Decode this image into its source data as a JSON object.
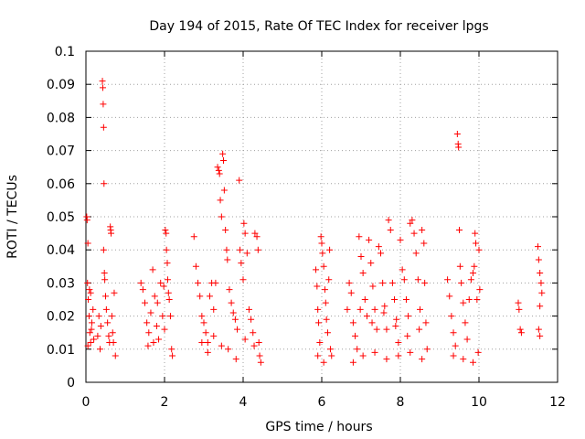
{
  "chart_data": {
    "type": "scatter",
    "title": "Day 194 of 2015, Rate Of TEC Index for receiver lpgs",
    "xlabel": "GPS time / hours",
    "ylabel": "ROTI / TECUs",
    "xlim": [
      0,
      12
    ],
    "ylim": [
      0,
      0.1
    ],
    "x_ticks": [
      0,
      2,
      4,
      6,
      8,
      10,
      12
    ],
    "x_tick_labels": [
      "0",
      "2",
      "4",
      "6",
      "8",
      "10",
      "12"
    ],
    "y_ticks": [
      0,
      0.01,
      0.02,
      0.03,
      0.04,
      0.05,
      0.06,
      0.07,
      0.08,
      0.09,
      0.1
    ],
    "y_tick_labels": [
      "0",
      "0.01",
      "0.02",
      "0.03",
      "0.04",
      "0.05",
      "0.06",
      "0.07",
      "0.08",
      "0.09",
      "0.1"
    ],
    "grid": true,
    "marker": "+",
    "marker_color": "#ff0000",
    "series": [
      {
        "name": "ROTI",
        "points": [
          [
            0.02,
            0.05
          ],
          [
            0.03,
            0.049
          ],
          [
            0.05,
            0.042
          ],
          [
            0.04,
            0.03
          ],
          [
            0.06,
            0.025
          ],
          [
            0.08,
            0.02
          ],
          [
            0.1,
            0.015
          ],
          [
            0.12,
            0.012
          ],
          [
            0.15,
            0.018
          ],
          [
            0.18,
            0.022
          ],
          [
            0.2,
            0.013
          ],
          [
            0.05,
            0.011
          ],
          [
            0.09,
            0.028
          ],
          [
            0.12,
            0.027
          ],
          [
            0.14,
            0.016
          ],
          [
            0.3,
            0.014
          ],
          [
            0.33,
            0.02
          ],
          [
            0.36,
            0.01
          ],
          [
            0.38,
            0.017
          ],
          [
            0.42,
            0.091
          ],
          [
            0.43,
            0.089
          ],
          [
            0.44,
            0.084
          ],
          [
            0.45,
            0.077
          ],
          [
            0.46,
            0.06
          ],
          [
            0.45,
            0.04
          ],
          [
            0.47,
            0.033
          ],
          [
            0.48,
            0.031
          ],
          [
            0.5,
            0.026
          ],
          [
            0.52,
            0.022
          ],
          [
            0.55,
            0.018
          ],
          [
            0.58,
            0.014
          ],
          [
            0.6,
            0.012
          ],
          [
            0.62,
            0.047
          ],
          [
            0.63,
            0.046
          ],
          [
            0.64,
            0.045
          ],
          [
            0.66,
            0.02
          ],
          [
            0.68,
            0.015
          ],
          [
            0.7,
            0.012
          ],
          [
            0.72,
            0.027
          ],
          [
            0.75,
            0.008
          ],
          [
            1.4,
            0.03
          ],
          [
            1.45,
            0.028
          ],
          [
            1.5,
            0.024
          ],
          [
            1.55,
            0.018
          ],
          [
            1.6,
            0.015
          ],
          [
            1.65,
            0.021
          ],
          [
            1.7,
            0.034
          ],
          [
            1.75,
            0.026
          ],
          [
            1.8,
            0.017
          ],
          [
            1.85,
            0.013
          ],
          [
            1.9,
            0.03
          ],
          [
            1.95,
            0.02
          ],
          [
            2.0,
            0.016
          ],
          [
            2.02,
            0.046
          ],
          [
            2.04,
            0.045
          ],
          [
            2.05,
            0.04
          ],
          [
            2.07,
            0.036
          ],
          [
            2.1,
            0.027
          ],
          [
            2.12,
            0.025
          ],
          [
            2.15,
            0.02
          ],
          [
            2.18,
            0.01
          ],
          [
            2.2,
            0.008
          ],
          [
            1.58,
            0.011
          ],
          [
            1.72,
            0.012
          ],
          [
            1.82,
            0.024
          ],
          [
            1.98,
            0.029
          ],
          [
            2.08,
            0.031
          ],
          [
            2.75,
            0.044
          ],
          [
            2.8,
            0.035
          ],
          [
            2.85,
            0.03
          ],
          [
            2.9,
            0.026
          ],
          [
            2.95,
            0.02
          ],
          [
            3.0,
            0.018
          ],
          [
            3.05,
            0.015
          ],
          [
            3.1,
            0.012
          ],
          [
            3.15,
            0.026
          ],
          [
            3.2,
            0.03
          ],
          [
            3.25,
            0.022
          ],
          [
            3.3,
            0.03
          ],
          [
            3.35,
            0.065
          ],
          [
            3.38,
            0.064
          ],
          [
            3.4,
            0.063
          ],
          [
            3.42,
            0.055
          ],
          [
            3.45,
            0.05
          ],
          [
            3.48,
            0.069
          ],
          [
            3.5,
            0.067
          ],
          [
            3.52,
            0.058
          ],
          [
            3.55,
            0.046
          ],
          [
            3.58,
            0.04
          ],
          [
            3.6,
            0.037
          ],
          [
            3.65,
            0.028
          ],
          [
            3.7,
            0.024
          ],
          [
            3.75,
            0.021
          ],
          [
            3.8,
            0.019
          ],
          [
            3.85,
            0.016
          ],
          [
            3.9,
            0.061
          ],
          [
            3.92,
            0.04
          ],
          [
            3.95,
            0.036
          ],
          [
            4.0,
            0.031
          ],
          [
            4.02,
            0.048
          ],
          [
            4.05,
            0.045
          ],
          [
            4.1,
            0.039
          ],
          [
            4.15,
            0.022
          ],
          [
            4.2,
            0.019
          ],
          [
            4.25,
            0.015
          ],
          [
            4.3,
            0.045
          ],
          [
            4.35,
            0.044
          ],
          [
            4.38,
            0.04
          ],
          [
            4.4,
            0.012
          ],
          [
            4.42,
            0.008
          ],
          [
            4.45,
            0.006
          ],
          [
            2.95,
            0.012
          ],
          [
            3.1,
            0.009
          ],
          [
            3.25,
            0.014
          ],
          [
            3.45,
            0.011
          ],
          [
            3.62,
            0.01
          ],
          [
            3.82,
            0.007
          ],
          [
            4.05,
            0.013
          ],
          [
            4.28,
            0.011
          ],
          [
            5.85,
            0.034
          ],
          [
            5.88,
            0.029
          ],
          [
            5.9,
            0.022
          ],
          [
            5.92,
            0.018
          ],
          [
            5.95,
            0.012
          ],
          [
            5.98,
            0.044
          ],
          [
            6.0,
            0.042
          ],
          [
            6.02,
            0.039
          ],
          [
            6.05,
            0.035
          ],
          [
            6.08,
            0.028
          ],
          [
            6.1,
            0.024
          ],
          [
            6.12,
            0.019
          ],
          [
            6.15,
            0.015
          ],
          [
            6.18,
            0.031
          ],
          [
            6.2,
            0.04
          ],
          [
            6.22,
            0.01
          ],
          [
            6.25,
            0.008
          ],
          [
            6.05,
            0.006
          ],
          [
            5.9,
            0.008
          ],
          [
            6.65,
            0.022
          ],
          [
            6.7,
            0.03
          ],
          [
            6.75,
            0.027
          ],
          [
            6.8,
            0.018
          ],
          [
            6.85,
            0.014
          ],
          [
            6.9,
            0.01
          ],
          [
            6.95,
            0.044
          ],
          [
            7.0,
            0.038
          ],
          [
            7.05,
            0.033
          ],
          [
            7.1,
            0.025
          ],
          [
            7.15,
            0.02
          ],
          [
            7.2,
            0.043
          ],
          [
            7.25,
            0.036
          ],
          [
            7.3,
            0.029
          ],
          [
            7.35,
            0.022
          ],
          [
            7.4,
            0.016
          ],
          [
            7.45,
            0.041
          ],
          [
            7.5,
            0.039
          ],
          [
            7.55,
            0.03
          ],
          [
            7.6,
            0.023
          ],
          [
            7.65,
            0.016
          ],
          [
            7.7,
            0.049
          ],
          [
            7.75,
            0.046
          ],
          [
            7.8,
            0.03
          ],
          [
            7.85,
            0.025
          ],
          [
            7.9,
            0.019
          ],
          [
            7.95,
            0.012
          ],
          [
            8.0,
            0.043
          ],
          [
            8.05,
            0.034
          ],
          [
            8.1,
            0.031
          ],
          [
            8.15,
            0.025
          ],
          [
            8.2,
            0.02
          ],
          [
            8.25,
            0.048
          ],
          [
            8.3,
            0.049
          ],
          [
            8.35,
            0.045
          ],
          [
            8.4,
            0.039
          ],
          [
            8.45,
            0.031
          ],
          [
            8.5,
            0.022
          ],
          [
            8.55,
            0.046
          ],
          [
            8.6,
            0.042
          ],
          [
            8.62,
            0.03
          ],
          [
            8.65,
            0.018
          ],
          [
            8.68,
            0.01
          ],
          [
            6.8,
            0.006
          ],
          [
            7.05,
            0.008
          ],
          [
            7.35,
            0.009
          ],
          [
            7.65,
            0.007
          ],
          [
            7.95,
            0.008
          ],
          [
            8.25,
            0.009
          ],
          [
            8.55,
            0.007
          ],
          [
            6.98,
            0.022
          ],
          [
            7.28,
            0.018
          ],
          [
            7.58,
            0.021
          ],
          [
            7.88,
            0.017
          ],
          [
            8.18,
            0.014
          ],
          [
            8.48,
            0.016
          ],
          [
            9.2,
            0.031
          ],
          [
            9.25,
            0.026
          ],
          [
            9.3,
            0.02
          ],
          [
            9.35,
            0.015
          ],
          [
            9.4,
            0.011
          ],
          [
            9.45,
            0.075
          ],
          [
            9.47,
            0.072
          ],
          [
            9.48,
            0.071
          ],
          [
            9.5,
            0.046
          ],
          [
            9.52,
            0.035
          ],
          [
            9.55,
            0.03
          ],
          [
            9.6,
            0.024
          ],
          [
            9.65,
            0.018
          ],
          [
            9.7,
            0.013
          ],
          [
            9.75,
            0.025
          ],
          [
            9.8,
            0.031
          ],
          [
            9.85,
            0.033
          ],
          [
            9.88,
            0.035
          ],
          [
            9.9,
            0.045
          ],
          [
            9.92,
            0.042
          ],
          [
            9.95,
            0.025
          ],
          [
            10.0,
            0.04
          ],
          [
            10.02,
            0.028
          ],
          [
            9.35,
            0.008
          ],
          [
            9.6,
            0.007
          ],
          [
            9.85,
            0.006
          ],
          [
            9.98,
            0.009
          ],
          [
            11.0,
            0.024
          ],
          [
            11.02,
            0.022
          ],
          [
            11.05,
            0.016
          ],
          [
            11.08,
            0.015
          ],
          [
            11.5,
            0.041
          ],
          [
            11.52,
            0.037
          ],
          [
            11.55,
            0.033
          ],
          [
            11.58,
            0.03
          ],
          [
            11.6,
            0.027
          ],
          [
            11.55,
            0.023
          ],
          [
            11.52,
            0.016
          ],
          [
            11.55,
            0.014
          ]
        ]
      }
    ]
  }
}
